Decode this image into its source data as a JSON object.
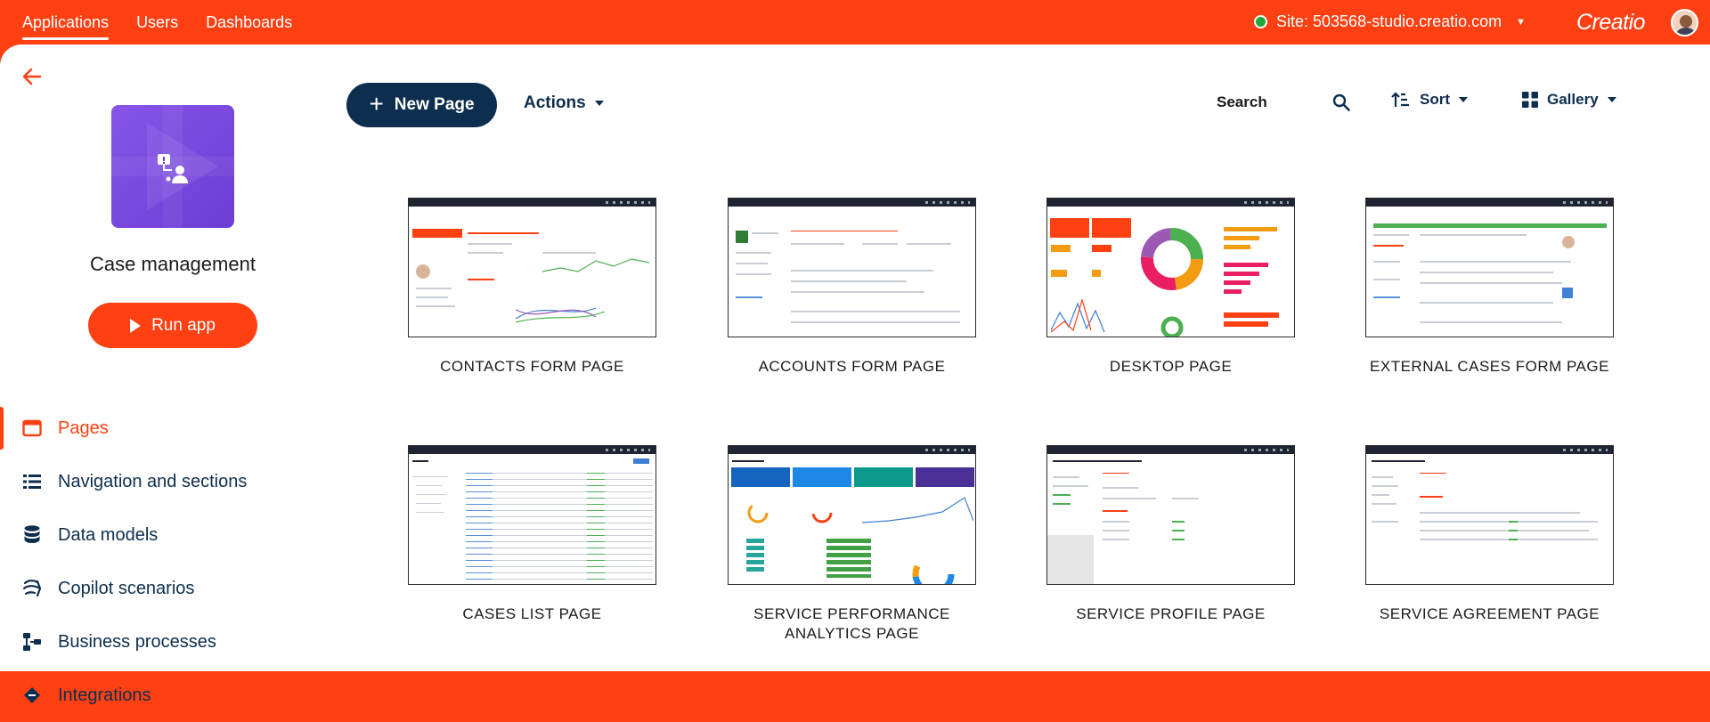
{
  "topbar": {
    "tabs": [
      {
        "label": "Applications",
        "active": true
      },
      {
        "label": "Users",
        "active": false
      },
      {
        "label": "Dashboards",
        "active": false
      }
    ],
    "site_label": "Site: 503568-studio.creatio.com",
    "site_status_color": "#21a73d",
    "logo_text": "Creatio"
  },
  "sidebar": {
    "app_name": "Case management",
    "run_button": "Run app",
    "items": [
      {
        "label": "Pages",
        "icon": "page-icon",
        "active": true
      },
      {
        "label": "Navigation and sections",
        "icon": "list-icon",
        "active": false
      },
      {
        "label": "Data models",
        "icon": "database-icon",
        "active": false
      },
      {
        "label": "Copilot scenarios",
        "icon": "copilot-icon",
        "active": false
      },
      {
        "label": "Business processes",
        "icon": "process-icon",
        "active": false
      },
      {
        "label": "Integrations",
        "icon": "integration-icon",
        "active": false
      }
    ]
  },
  "toolbar": {
    "new_page": "New Page",
    "actions": "Actions",
    "search_placeholder": "Search",
    "sort": "Sort",
    "view": "Gallery"
  },
  "pages": [
    {
      "title": "CONTACTS FORM PAGE"
    },
    {
      "title": "ACCOUNTS FORM PAGE"
    },
    {
      "title": "DESKTOP PAGE"
    },
    {
      "title": "EXTERNAL CASES FORM PAGE"
    },
    {
      "title": "CASES LIST PAGE"
    },
    {
      "title": "SERVICE PERFORMANCE ANALYTICS PAGE"
    },
    {
      "title": "SERVICE PROFILE PAGE"
    },
    {
      "title": "SERVICE AGREEMENT PAGE"
    }
  ],
  "colors": {
    "accent": "#ff4013",
    "navy": "#0d2e4e",
    "app_icon": "#7a48df"
  }
}
